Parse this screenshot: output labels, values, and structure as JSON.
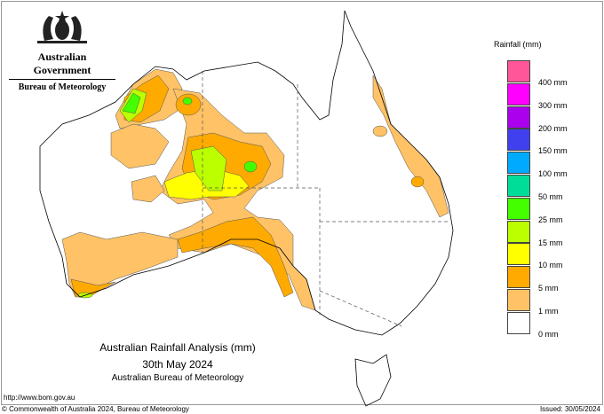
{
  "header": {
    "agency_line1": "Australian Government",
    "agency_line2": "Bureau of Meteorology"
  },
  "map": {
    "title": "Australian Rainfall Analysis (mm)",
    "date": "30th May 2024",
    "agency": "Australian Bureau of Meteorology"
  },
  "legend": {
    "title": "Rainfall (mm)",
    "bins": [
      {
        "color": "#ff5599",
        "label": "400 mm"
      },
      {
        "color": "#ff00ff",
        "label": "300 mm"
      },
      {
        "color": "#aa00ee",
        "label": "200 mm"
      },
      {
        "color": "#4040ee",
        "label": "150 mm"
      },
      {
        "color": "#00aaff",
        "label": "100 mm"
      },
      {
        "color": "#00dd99",
        "label": "50 mm"
      },
      {
        "color": "#44ff00",
        "label": "25 mm"
      },
      {
        "color": "#bbff00",
        "label": "15 mm"
      },
      {
        "color": "#ffff00",
        "label": "10 mm"
      },
      {
        "color": "#ffaa00",
        "label": "5 mm"
      },
      {
        "color": "#ffc266",
        "label": "1 mm"
      },
      {
        "color": "#ffffff",
        "label": "0 mm"
      }
    ]
  },
  "footer": {
    "url": "http://www.bom.gov.au",
    "copyright": "© Commonwealth of Australia 2024, Bureau of Meteorology",
    "issued": "Issued: 30/05/2024"
  }
}
